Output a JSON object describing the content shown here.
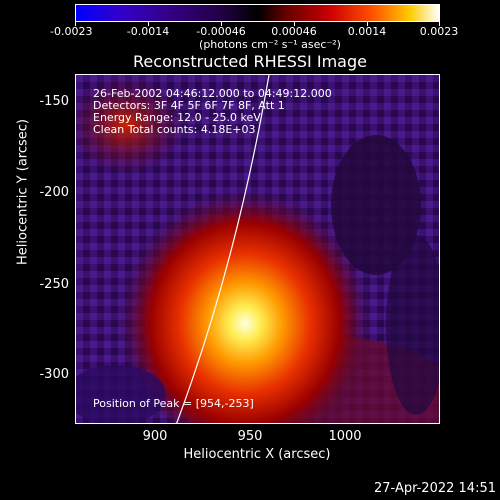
{
  "colorbar": {
    "ticks": [
      "-0.0023",
      "-0.0014",
      "-0.00046",
      "0.00046",
      "0.0014",
      "0.0023"
    ],
    "unit": "(photons cm⁻² s⁻¹ asec⁻²)"
  },
  "title": "Reconstructed RHESSI Image",
  "info": {
    "time": "26-Feb-2002 04:46:12.000 to 04:49:12.000",
    "detectors": "Detectors: 3F 4F 5F 6F 7F 8F, Att 1",
    "energy": "Energy Range: 12.0 - 25.0 keV",
    "clean": "Clean     Total counts: 4.18E+03"
  },
  "peak": "Position of Peak = [954,-253]",
  "axes": {
    "ylabel": "Heliocentric Y (arcsec)",
    "xlabel": "Heliocentric X (arcsec)",
    "yticks": [
      "-150",
      "-200",
      "-250",
      "-300"
    ],
    "xticks": [
      "900",
      "950",
      "1000"
    ]
  },
  "timestamp": "27-Apr-2022 14:51"
}
